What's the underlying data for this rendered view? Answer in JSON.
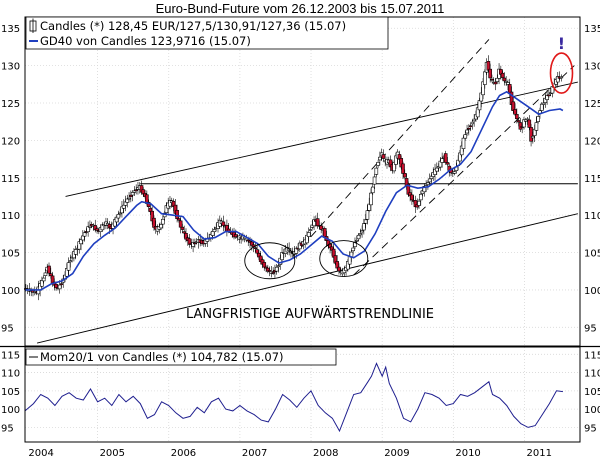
{
  "chart_data": {
    "title": "Euro-Bund-Future vom 26.12.2003 bis 15.07.2011",
    "x_labels": [
      "2004",
      "2005",
      "2006",
      "2007",
      "2008",
      "2009",
      "2010",
      "2011"
    ],
    "main_panel": {
      "type": "candlestick",
      "y_ticks": [
        95,
        100,
        105,
        110,
        115,
        120,
        125,
        130,
        135
      ],
      "ylim": [
        92.5,
        136.5
      ],
      "legend": [
        {
          "text": "Candles (*) 128,45 EUR/127,5/130,91/127,36 (15.07)",
          "symbol": "candle"
        },
        {
          "text": "GD40 von Candles 123,9716 (15.07)",
          "symbol": "line",
          "color": "#1f3fc0"
        }
      ],
      "annotation": "LANGFRISTIGE AUFWÄRTSTRENDLINIE",
      "exclamation": "!",
      "price_path": [
        [
          2003.98,
          100.2
        ],
        [
          2004.15,
          99.6
        ],
        [
          2004.25,
          101.5
        ],
        [
          2004.3,
          103.2
        ],
        [
          2004.38,
          101.0
        ],
        [
          2004.45,
          100.1
        ],
        [
          2004.55,
          101.8
        ],
        [
          2004.62,
          104.0
        ],
        [
          2004.72,
          105.5
        ],
        [
          2004.82,
          107.5
        ],
        [
          2004.92,
          108.8
        ],
        [
          2005.02,
          107.8
        ],
        [
          2005.12,
          109.0
        ],
        [
          2005.2,
          108.2
        ],
        [
          2005.3,
          110.0
        ],
        [
          2005.42,
          112.0
        ],
        [
          2005.52,
          113.2
        ],
        [
          2005.6,
          113.8
        ],
        [
          2005.68,
          112.5
        ],
        [
          2005.75,
          110.5
        ],
        [
          2005.82,
          108.0
        ],
        [
          2005.9,
          108.5
        ],
        [
          2005.97,
          111.0
        ],
        [
          2006.05,
          112.0
        ],
        [
          2006.12,
          110.0
        ],
        [
          2006.18,
          108.5
        ],
        [
          2006.25,
          107.0
        ],
        [
          2006.33,
          106.0
        ],
        [
          2006.42,
          106.6
        ],
        [
          2006.5,
          106.3
        ],
        [
          2006.58,
          107.0
        ],
        [
          2006.66,
          108.2
        ],
        [
          2006.74,
          109.2
        ],
        [
          2006.82,
          108.2
        ],
        [
          2006.9,
          107.5
        ],
        [
          2006.98,
          107.0
        ],
        [
          2007.06,
          107.0
        ],
        [
          2007.14,
          106.5
        ],
        [
          2007.22,
          105.6
        ],
        [
          2007.3,
          104.0
        ],
        [
          2007.38,
          102.8
        ],
        [
          2007.46,
          102.2
        ],
        [
          2007.54,
          103.0
        ],
        [
          2007.6,
          104.8
        ],
        [
          2007.68,
          105.5
        ],
        [
          2007.76,
          104.8
        ],
        [
          2007.85,
          106.0
        ],
        [
          2007.93,
          106.5
        ],
        [
          2008.0,
          108.2
        ],
        [
          2008.07,
          109.5
        ],
        [
          2008.12,
          108.5
        ],
        [
          2008.18,
          108.0
        ],
        [
          2008.24,
          106.2
        ],
        [
          2008.3,
          105.5
        ],
        [
          2008.36,
          103.5
        ],
        [
          2008.42,
          102.2
        ],
        [
          2008.5,
          102.8
        ],
        [
          2008.56,
          104.5
        ],
        [
          2008.62,
          106.2
        ],
        [
          2008.68,
          107.3
        ],
        [
          2008.72,
          107.8
        ],
        [
          2008.78,
          109.5
        ],
        [
          2008.84,
          112.0
        ],
        [
          2008.88,
          114.0
        ],
        [
          2008.93,
          116.5
        ],
        [
          2009.0,
          118.5
        ],
        [
          2009.04,
          117.0
        ],
        [
          2009.1,
          117.3
        ],
        [
          2009.16,
          116.0
        ],
        [
          2009.22,
          118.5
        ],
        [
          2009.3,
          116.0
        ],
        [
          2009.38,
          113.0
        ],
        [
          2009.44,
          112.0
        ],
        [
          2009.5,
          111.0
        ],
        [
          2009.56,
          113.0
        ],
        [
          2009.64,
          114.2
        ],
        [
          2009.72,
          115.5
        ],
        [
          2009.8,
          116.5
        ],
        [
          2009.88,
          118.0
        ],
        [
          2009.95,
          116.0
        ],
        [
          2010.02,
          115.5
        ],
        [
          2010.1,
          118.0
        ],
        [
          2010.18,
          121.0
        ],
        [
          2010.26,
          122.2
        ],
        [
          2010.34,
          123.5
        ],
        [
          2010.42,
          127.0
        ],
        [
          2010.48,
          130.5
        ],
        [
          2010.54,
          128.0
        ],
        [
          2010.6,
          127.5
        ],
        [
          2010.66,
          129.5
        ],
        [
          2010.72,
          128.0
        ],
        [
          2010.78,
          127.5
        ],
        [
          2010.84,
          124.5
        ],
        [
          2010.9,
          123.0
        ],
        [
          2010.96,
          121.5
        ],
        [
          2011.0,
          122.5
        ],
        [
          2011.06,
          123.0
        ],
        [
          2011.1,
          120.0
        ],
        [
          2011.16,
          121.5
        ],
        [
          2011.22,
          124.0
        ],
        [
          2011.3,
          125.5
        ],
        [
          2011.38,
          126.5
        ],
        [
          2011.45,
          128.0
        ],
        [
          2011.5,
          128.5
        ],
        [
          2011.54,
          128.45
        ]
      ],
      "gd40_path": [
        [
          2003.98,
          100.0
        ],
        [
          2004.2,
          100.0
        ],
        [
          2004.35,
          100.8
        ],
        [
          2004.5,
          101.2
        ],
        [
          2004.65,
          102.2
        ],
        [
          2004.8,
          104.5
        ],
        [
          2004.95,
          106.2
        ],
        [
          2005.1,
          107.3
        ],
        [
          2005.25,
          108.3
        ],
        [
          2005.4,
          109.8
        ],
        [
          2005.55,
          111.3
        ],
        [
          2005.62,
          111.8
        ],
        [
          2005.75,
          111.5
        ],
        [
          2005.9,
          110.2
        ],
        [
          2006.05,
          110.0
        ],
        [
          2006.2,
          109.8
        ],
        [
          2006.35,
          108.0
        ],
        [
          2006.5,
          106.8
        ],
        [
          2006.65,
          107.0
        ],
        [
          2006.8,
          107.8
        ],
        [
          2006.95,
          107.8
        ],
        [
          2007.1,
          107.0
        ],
        [
          2007.25,
          106.2
        ],
        [
          2007.4,
          104.5
        ],
        [
          2007.55,
          103.6
        ],
        [
          2007.7,
          104.0
        ],
        [
          2007.85,
          104.8
        ],
        [
          2008.0,
          106.0
        ],
        [
          2008.15,
          107.2
        ],
        [
          2008.3,
          106.5
        ],
        [
          2008.45,
          104.8
        ],
        [
          2008.6,
          104.3
        ],
        [
          2008.75,
          105.2
        ],
        [
          2008.9,
          107.5
        ],
        [
          2009.05,
          110.5
        ],
        [
          2009.2,
          113.0
        ],
        [
          2009.35,
          114.0
        ],
        [
          2009.5,
          113.6
        ],
        [
          2009.65,
          113.8
        ],
        [
          2009.8,
          114.8
        ],
        [
          2009.95,
          116.0
        ],
        [
          2010.1,
          116.8
        ],
        [
          2010.25,
          118.5
        ],
        [
          2010.4,
          121.5
        ],
        [
          2010.55,
          124.5
        ],
        [
          2010.65,
          126.0
        ],
        [
          2010.75,
          126.5
        ],
        [
          2010.9,
          125.5
        ],
        [
          2011.05,
          124.5
        ],
        [
          2011.2,
          123.5
        ],
        [
          2011.35,
          124.0
        ],
        [
          2011.5,
          124.2
        ],
        [
          2011.54,
          124.0
        ]
      ]
    },
    "momentum_panel": {
      "legend": "Mom20/1 von Candles (*) 104,782 (15.07)",
      "y_ticks": [
        95,
        100,
        105,
        110,
        115
      ],
      "ylim": [
        91,
        117
      ],
      "path": [
        [
          2003.98,
          99.5
        ],
        [
          2004.1,
          101.5
        ],
        [
          2004.2,
          104.0
        ],
        [
          2004.3,
          103.0
        ],
        [
          2004.4,
          101.0
        ],
        [
          2004.5,
          103.5
        ],
        [
          2004.6,
          104.5
        ],
        [
          2004.7,
          103.0
        ],
        [
          2004.8,
          102.5
        ],
        [
          2004.9,
          105.5
        ],
        [
          2005.0,
          102.0
        ],
        [
          2005.1,
          103.0
        ],
        [
          2005.2,
          101.0
        ],
        [
          2005.3,
          104.0
        ],
        [
          2005.4,
          102.0
        ],
        [
          2005.5,
          103.5
        ],
        [
          2005.6,
          101.5
        ],
        [
          2005.7,
          97.5
        ],
        [
          2005.8,
          98.5
        ],
        [
          2005.9,
          102.0
        ],
        [
          2006.0,
          101.0
        ],
        [
          2006.1,
          99.0
        ],
        [
          2006.2,
          97.5
        ],
        [
          2006.3,
          98.0
        ],
        [
          2006.4,
          100.5
        ],
        [
          2006.5,
          99.0
        ],
        [
          2006.6,
          102.0
        ],
        [
          2006.7,
          103.0
        ],
        [
          2006.8,
          100.0
        ],
        [
          2006.9,
          99.5
        ],
        [
          2007.0,
          101.0
        ],
        [
          2007.1,
          99.5
        ],
        [
          2007.2,
          98.5
        ],
        [
          2007.3,
          97.0
        ],
        [
          2007.4,
          96.5
        ],
        [
          2007.5,
          100.0
        ],
        [
          2007.6,
          104.0
        ],
        [
          2007.7,
          102.5
        ],
        [
          2007.8,
          100.5
        ],
        [
          2007.9,
          103.0
        ],
        [
          2008.0,
          105.0
        ],
        [
          2008.1,
          101.0
        ],
        [
          2008.2,
          99.0
        ],
        [
          2008.3,
          97.5
        ],
        [
          2008.4,
          94.0
        ],
        [
          2008.5,
          99.0
        ],
        [
          2008.6,
          104.0
        ],
        [
          2008.7,
          104.5
        ],
        [
          2008.8,
          107.5
        ],
        [
          2008.85,
          109.0
        ],
        [
          2008.92,
          112.5
        ],
        [
          2009.0,
          109.0
        ],
        [
          2009.05,
          111.5
        ],
        [
          2009.1,
          107.0
        ],
        [
          2009.2,
          103.0
        ],
        [
          2009.3,
          97.5
        ],
        [
          2009.4,
          96.5
        ],
        [
          2009.5,
          100.0
        ],
        [
          2009.6,
          104.5
        ],
        [
          2009.7,
          104.0
        ],
        [
          2009.8,
          103.0
        ],
        [
          2009.9,
          101.0
        ],
        [
          2010.0,
          101.5
        ],
        [
          2010.1,
          104.0
        ],
        [
          2010.2,
          103.5
        ],
        [
          2010.3,
          104.5
        ],
        [
          2010.4,
          106.0
        ],
        [
          2010.5,
          107.5
        ],
        [
          2010.55,
          104.0
        ],
        [
          2010.65,
          103.0
        ],
        [
          2010.75,
          101.0
        ],
        [
          2010.85,
          98.0
        ],
        [
          2010.95,
          96.0
        ],
        [
          2011.05,
          95.0
        ],
        [
          2011.15,
          95.5
        ],
        [
          2011.25,
          98.5
        ],
        [
          2011.35,
          101.5
        ],
        [
          2011.45,
          105.0
        ],
        [
          2011.54,
          104.8
        ]
      ]
    }
  }
}
